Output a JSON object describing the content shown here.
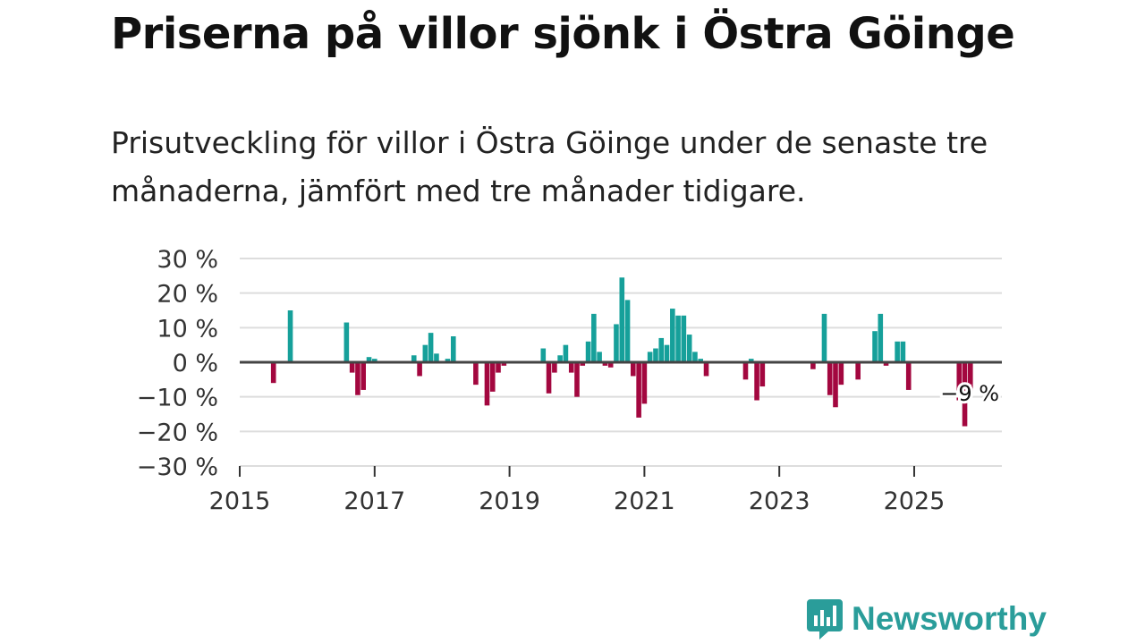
{
  "title": "Priserna på villor sjönk i Östra Göinge",
  "subtitle": "Prisutveckling för villor i Östra Göinge under de senaste tre månaderna, jämfört med tre månader tidigare.",
  "brand": {
    "name": "Newsworthy",
    "color": "#2a9d9a"
  },
  "colors": {
    "positive": "#16a09a",
    "negative": "#a3073f",
    "grid": "#dddddd",
    "zero_line": "#444444"
  },
  "chart_data": {
    "type": "bar",
    "title": "",
    "xlabel": "",
    "ylabel": "",
    "x_ticks": [
      "2015",
      "2017",
      "2019",
      "2021",
      "2023",
      "2025"
    ],
    "y_ticks": [
      "30 %",
      "20 %",
      "10 %",
      "0 %",
      "−10 %",
      "−20 %",
      "−30 %"
    ],
    "ylim": [
      -30,
      30
    ],
    "xlim": [
      2015,
      2026.3
    ],
    "annotation": {
      "label": "−9 %",
      "x": 2025.917,
      "y": -9
    },
    "series": [
      {
        "name": "Prisutveckling",
        "points": [
          {
            "x": 2015.5,
            "y": -6
          },
          {
            "x": 2015.75,
            "y": 15
          },
          {
            "x": 2016.583,
            "y": 11.5
          },
          {
            "x": 2016.667,
            "y": -3
          },
          {
            "x": 2016.75,
            "y": -9.5
          },
          {
            "x": 2016.833,
            "y": -8
          },
          {
            "x": 2016.917,
            "y": 1.5
          },
          {
            "x": 2017.0,
            "y": 1
          },
          {
            "x": 2017.583,
            "y": 2
          },
          {
            "x": 2017.667,
            "y": -4
          },
          {
            "x": 2017.75,
            "y": 5
          },
          {
            "x": 2017.833,
            "y": 8.5
          },
          {
            "x": 2017.917,
            "y": 2.5
          },
          {
            "x": 2018.083,
            "y": 1
          },
          {
            "x": 2018.167,
            "y": 7.5
          },
          {
            "x": 2018.5,
            "y": -6.5
          },
          {
            "x": 2018.667,
            "y": -12.5
          },
          {
            "x": 2018.75,
            "y": -8.5
          },
          {
            "x": 2018.833,
            "y": -3
          },
          {
            "x": 2018.917,
            "y": -1
          },
          {
            "x": 2019.5,
            "y": 4
          },
          {
            "x": 2019.583,
            "y": -9
          },
          {
            "x": 2019.667,
            "y": -3
          },
          {
            "x": 2019.75,
            "y": 2
          },
          {
            "x": 2019.833,
            "y": 5
          },
          {
            "x": 2019.917,
            "y": -3
          },
          {
            "x": 2020.0,
            "y": -10
          },
          {
            "x": 2020.083,
            "y": -1
          },
          {
            "x": 2020.167,
            "y": 6
          },
          {
            "x": 2020.25,
            "y": 14
          },
          {
            "x": 2020.333,
            "y": 3
          },
          {
            "x": 2020.417,
            "y": -1
          },
          {
            "x": 2020.5,
            "y": -1.5
          },
          {
            "x": 2020.583,
            "y": 11
          },
          {
            "x": 2020.667,
            "y": 24.5
          },
          {
            "x": 2020.75,
            "y": 18
          },
          {
            "x": 2020.833,
            "y": -4
          },
          {
            "x": 2020.917,
            "y": -16
          },
          {
            "x": 2021.0,
            "y": -12
          },
          {
            "x": 2021.083,
            "y": 3
          },
          {
            "x": 2021.167,
            "y": 4
          },
          {
            "x": 2021.25,
            "y": 7
          },
          {
            "x": 2021.333,
            "y": 5
          },
          {
            "x": 2021.417,
            "y": 15.5
          },
          {
            "x": 2021.5,
            "y": 13.5
          },
          {
            "x": 2021.583,
            "y": 13.5
          },
          {
            "x": 2021.667,
            "y": 8
          },
          {
            "x": 2021.75,
            "y": 3
          },
          {
            "x": 2021.833,
            "y": 1
          },
          {
            "x": 2021.917,
            "y": -4
          },
          {
            "x": 2022.5,
            "y": -5
          },
          {
            "x": 2022.583,
            "y": 1
          },
          {
            "x": 2022.667,
            "y": -11
          },
          {
            "x": 2022.75,
            "y": -7
          },
          {
            "x": 2023.5,
            "y": -2
          },
          {
            "x": 2023.667,
            "y": 14
          },
          {
            "x": 2023.75,
            "y": -9.5
          },
          {
            "x": 2023.833,
            "y": -13
          },
          {
            "x": 2023.917,
            "y": -6.5
          },
          {
            "x": 2024.167,
            "y": -5
          },
          {
            "x": 2024.417,
            "y": 9
          },
          {
            "x": 2024.5,
            "y": 14
          },
          {
            "x": 2024.583,
            "y": -1
          },
          {
            "x": 2024.75,
            "y": 6
          },
          {
            "x": 2024.833,
            "y": 6
          },
          {
            "x": 2024.917,
            "y": -8
          },
          {
            "x": 2025.667,
            "y": -11
          },
          {
            "x": 2025.75,
            "y": -18.5
          },
          {
            "x": 2025.833,
            "y": -9
          }
        ]
      }
    ]
  }
}
